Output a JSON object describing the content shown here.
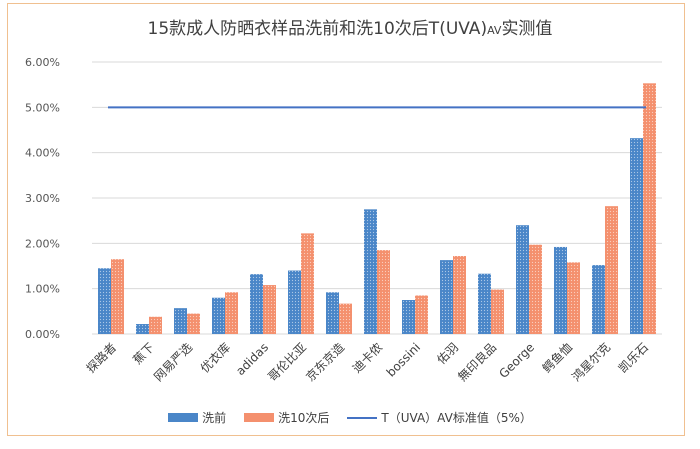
{
  "chart_data": {
    "type": "bar",
    "title": "15款成人防晒衣样品洗前和洗10次后T(UVA)",
    "title_subscript": "AV",
    "title_suffix": "实测值",
    "categories": [
      "探路者",
      "蕉下",
      "网易严选",
      "优衣库",
      "adidas",
      "哥伦比亚",
      "京东京造",
      "迪卡侬",
      "bossini",
      "佑羽",
      "無印良品",
      "George",
      "鳄鱼恤",
      "鸿星尔克",
      "凯乐石"
    ],
    "series": [
      {
        "name": "洗前",
        "color": "#4a86c8",
        "values": [
          1.45,
          0.22,
          0.57,
          0.8,
          1.32,
          1.4,
          0.92,
          2.75,
          0.75,
          1.63,
          1.33,
          2.4,
          1.92,
          1.52,
          4.32
        ]
      },
      {
        "name": "洗10次后",
        "color": "#f4906e",
        "values": [
          1.65,
          0.38,
          0.45,
          0.92,
          1.08,
          2.22,
          0.67,
          1.85,
          0.85,
          1.72,
          0.98,
          1.97,
          1.58,
          2.82,
          5.53
        ]
      }
    ],
    "reference_line": {
      "name": "T（UVA）AV标准值（5%）",
      "value": 5.0,
      "color": "#4472c4"
    },
    "y_ticks": [
      "0.00%",
      "1.00%",
      "2.00%",
      "3.00%",
      "4.00%",
      "5.00%",
      "6.00%"
    ],
    "ylim": [
      0,
      6
    ],
    "grid": true,
    "legend_position": "bottom"
  }
}
